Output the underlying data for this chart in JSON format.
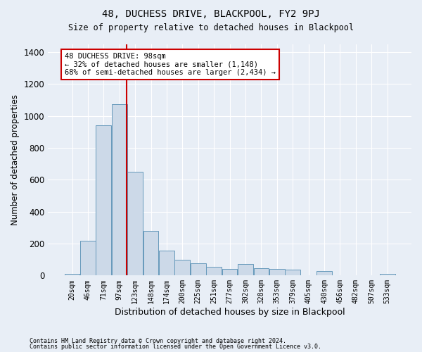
{
  "title": "48, DUCHESS DRIVE, BLACKPOOL, FY2 9PJ",
  "subtitle": "Size of property relative to detached houses in Blackpool",
  "xlabel": "Distribution of detached houses by size in Blackpool",
  "ylabel": "Number of detached properties",
  "bar_color": "#ccd9e8",
  "bar_edge_color": "#6699bb",
  "bin_labels": [
    "20sqm",
    "46sqm",
    "71sqm",
    "97sqm",
    "123sqm",
    "148sqm",
    "174sqm",
    "200sqm",
    "225sqm",
    "251sqm",
    "277sqm",
    "302sqm",
    "328sqm",
    "353sqm",
    "379sqm",
    "405sqm",
    "430sqm",
    "456sqm",
    "482sqm",
    "507sqm",
    "533sqm"
  ],
  "bar_heights": [
    10,
    218,
    940,
    1075,
    650,
    280,
    155,
    100,
    75,
    55,
    40,
    70,
    45,
    40,
    35,
    0,
    30,
    0,
    0,
    0,
    10
  ],
  "ylim": [
    0,
    1450
  ],
  "yticks": [
    0,
    200,
    400,
    600,
    800,
    1000,
    1200,
    1400
  ],
  "annotation_text": "48 DUCHESS DRIVE: 98sqm\n← 32% of detached houses are smaller (1,148)\n68% of semi-detached houses are larger (2,434) →",
  "annotation_box_color": "#ffffff",
  "annotation_border_color": "#cc0000",
  "vline_color": "#cc0000",
  "footnote1": "Contains HM Land Registry data © Crown copyright and database right 2024.",
  "footnote2": "Contains public sector information licensed under the Open Government Licence v3.0.",
  "background_color": "#e8eef6",
  "axes_background": "#e8eef6",
  "grid_color": "#ffffff",
  "vline_index": 3.47
}
